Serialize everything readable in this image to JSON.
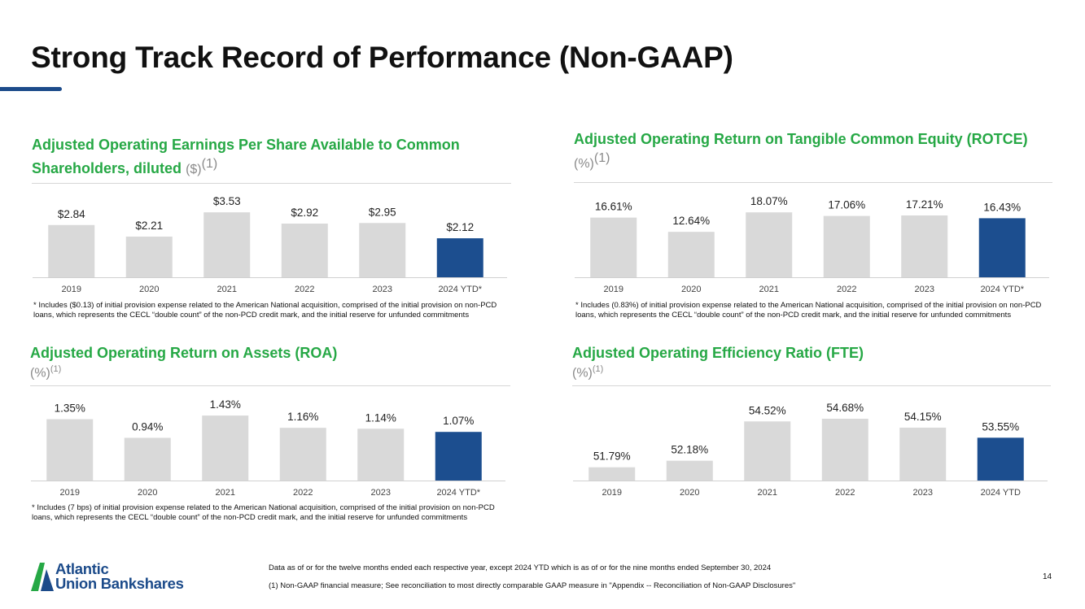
{
  "page": {
    "title": "Strong Track Record of Performance (Non-GAAP)",
    "page_number": "14"
  },
  "colors": {
    "bar_default": "#d9d9d9",
    "bar_highlight": "#1c4e8f",
    "title_green": "#26a845",
    "brand_blue": "#1c4b8a"
  },
  "chart_data": [
    {
      "type": "bar",
      "title": "Adjusted Operating Earnings Per Share Available to Common Shareholders, diluted",
      "unit": "($)",
      "footnote_ref": "(1)",
      "categories": [
        "2019",
        "2020",
        "2021",
        "2022",
        "2023",
        "2024 YTD*"
      ],
      "values": [
        2.84,
        2.21,
        3.53,
        2.92,
        2.95,
        2.12
      ],
      "labels": [
        "$2.84",
        "$2.21",
        "$3.53",
        "$2.92",
        "$2.95",
        "$2.12"
      ],
      "highlight_index": 5,
      "ylim": [
        0,
        4.2
      ],
      "note": "*  Includes ($0.13) of initial provision expense related to the American National acquisition, comprised of the initial provision on non-PCD loans, which represents the CECL “double count” of the non-PCD credit mark, and the initial reserve for unfunded commitments"
    },
    {
      "type": "bar",
      "title": "Adjusted Operating Return on Tangible Common Equity (ROTCE)",
      "unit": "(%)",
      "footnote_ref": "(1)",
      "categories": [
        "2019",
        "2020",
        "2021",
        "2022",
        "2023",
        "2024 YTD*"
      ],
      "values": [
        16.61,
        12.64,
        18.07,
        17.06,
        17.21,
        16.43
      ],
      "labels": [
        "16.61%",
        "12.64%",
        "18.07%",
        "17.06%",
        "17.21%",
        "16.43%"
      ],
      "highlight_index": 5,
      "ylim": [
        0,
        21.5
      ],
      "note": "*  Includes (0.83%) of initial provision expense related to the American National acquisition, comprised of the initial provision on non-PCD loans, which represents the CECL “double count” of the non-PCD credit mark, and the initial reserve for unfunded commitments"
    },
    {
      "type": "bar",
      "title": "Adjusted Operating Return on Assets (ROA)",
      "unit": "(%)",
      "footnote_ref": "(1)",
      "categories": [
        "2019",
        "2020",
        "2021",
        "2022",
        "2023",
        "2024 YTD*"
      ],
      "values": [
        1.35,
        0.94,
        1.43,
        1.16,
        1.14,
        1.07
      ],
      "labels": [
        "1.35%",
        "0.94%",
        "1.43%",
        "1.16%",
        "1.14%",
        "1.07%"
      ],
      "highlight_index": 5,
      "ylim": [
        0,
        1.7
      ],
      "note": "*  Includes (7 bps) of initial provision expense related to the American National acquisition, comprised of the initial provision on non-PCD loans, which represents the CECL “double count” of the non-PCD credit mark, and the initial reserve for unfunded commitments"
    },
    {
      "type": "bar",
      "title": "Adjusted Operating Efficiency Ratio (FTE)",
      "unit": "(%)",
      "footnote_ref": "(1)",
      "categories": [
        "2019",
        "2020",
        "2021",
        "2022",
        "2023",
        "2024 YTD"
      ],
      "values": [
        51.79,
        52.18,
        54.52,
        54.68,
        54.15,
        53.55
      ],
      "labels": [
        "51.79%",
        "52.18%",
        "54.52%",
        "54.68%",
        "54.15%",
        "53.55%"
      ],
      "highlight_index": 5,
      "ylim": [
        51.0,
        55.6
      ],
      "note": ""
    }
  ],
  "footer": {
    "line1": "Data as of or for the twelve months ended each respective year, except 2024 YTD which is as of or for the nine months ended September 30, 2024",
    "line2": "(1) Non-GAAP financial measure; See reconciliation to most directly comparable GAAP measure in \"Appendix -- Reconciliation of Non-GAAP Disclosures\""
  },
  "logo": {
    "line1": "Atlantic",
    "line2": "Union Bankshares"
  }
}
